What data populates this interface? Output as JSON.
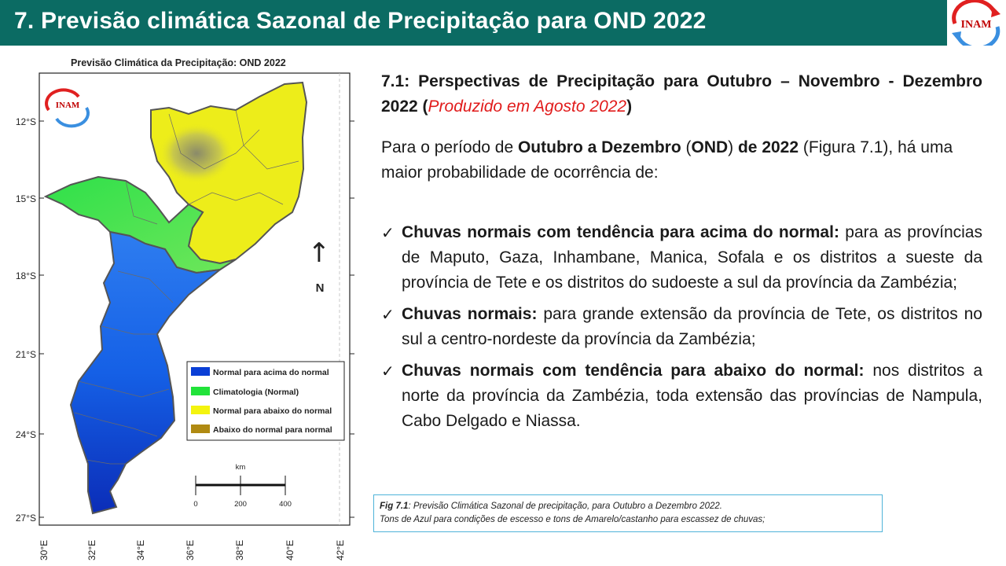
{
  "header": {
    "title": "7. Previsão climática Sazonal de Precipitação para OND 2022",
    "logo_text": "INAM"
  },
  "map": {
    "title": "Previsão Climática da Precipitação: OND 2022",
    "logo_text": "INAM",
    "lat_labels": [
      "12°S",
      "15°S",
      "18°S",
      "21°S",
      "24°S",
      "27°S"
    ],
    "lon_labels": [
      "30°E",
      "32°E",
      "34°E",
      "36°E",
      "38°E",
      "40°E",
      "42°E"
    ],
    "north_arrow": "↑",
    "north_label": "N",
    "legend": [
      {
        "label": "Normal para acima do normal",
        "color": "#0a3fd6"
      },
      {
        "label": "Climatologia (Normal)",
        "color": "#21e33a"
      },
      {
        "label": "Normal para abaixo do normal",
        "color": "#f4f40e"
      },
      {
        "label": "Abaixo do normal para normal",
        "color": "#b08a12"
      }
    ],
    "scale": {
      "unit": "km",
      "ticks": [
        "0",
        "200",
        "400"
      ]
    }
  },
  "heading": {
    "part1": "7.1: Perspectivas de Precipitação para Outubro – Novembro - Dezembro 2022 (",
    "red": "Produzido em Agosto 2022",
    "part2": ")"
  },
  "intro": {
    "t1": "Para o período de ",
    "b1": "Outubro a Dezembro",
    "t2": " (",
    "b2": "OND",
    "t3": ") ",
    "b3": "de 2022",
    "t4": " (Figura 7.1), há uma maior probabilidade de ocorrência de:"
  },
  "bullets": [
    {
      "bold": "Chuvas normais com tendência para acima do normal:",
      "text": " para as províncias de Maputo, Gaza, Inhambane, Manica, Sofala e os distritos a sueste da província de Tete e os distritos do sudoeste a sul da província da Zambézia;"
    },
    {
      "bold": "Chuvas normais:",
      "text": " para grande extensão da província de Tete, os distritos no sul a centro-nordeste da província da Zambézia;"
    },
    {
      "bold": "Chuvas normais com tendência para abaixo do normal:",
      "text": " nos distritos a norte da província da Zambézia, toda extensão das províncias de Nampula, Cabo Delgado e Niassa."
    }
  ],
  "caption": {
    "fig": "Fig 7.1",
    "line1": ": Previsão Climática Sazonal de precipitação, para Outubro  a Dezembro 2022.",
    "line2": "Tons de Azul para  condições de escesso e tons de Amarelo/castanho para escassez de chuvas;"
  }
}
